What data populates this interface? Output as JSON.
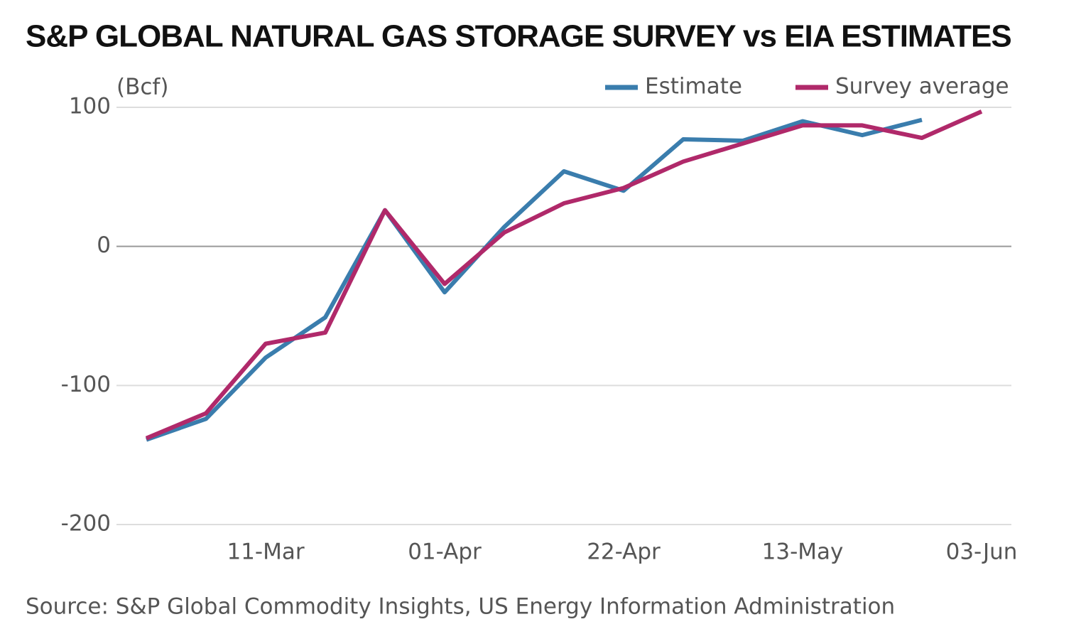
{
  "chart_data": {
    "type": "line",
    "title": "S&P GLOBAL NATURAL GAS STORAGE SURVEY vs EIA ESTIMATES",
    "y_label": "(Bcf)",
    "source": "Source: S&P Global Commodity Insights, US Energy Information Administration",
    "categories": [
      null,
      null,
      "11-Mar",
      null,
      null,
      "01-Apr",
      null,
      null,
      "22-Apr",
      null,
      null,
      "13-May",
      null,
      null,
      "03-Jun"
    ],
    "series": [
      {
        "name": "Estimate",
        "color": "#3a7dad",
        "values": [
          -139,
          -124,
          -80,
          -51,
          26,
          -33,
          14,
          54,
          40,
          77,
          76,
          90,
          80,
          91,
          null
        ]
      },
      {
        "name": "Survey average",
        "color": "#b0296a",
        "values": [
          -138,
          -120,
          -70,
          -62,
          26,
          -27,
          10,
          31,
          42,
          61,
          74,
          87,
          87,
          78,
          97
        ]
      }
    ],
    "ylim": [
      -200,
      100
    ],
    "yticks": [
      -200,
      -100,
      0,
      100
    ],
    "grid": true,
    "legend": "top-right"
  }
}
